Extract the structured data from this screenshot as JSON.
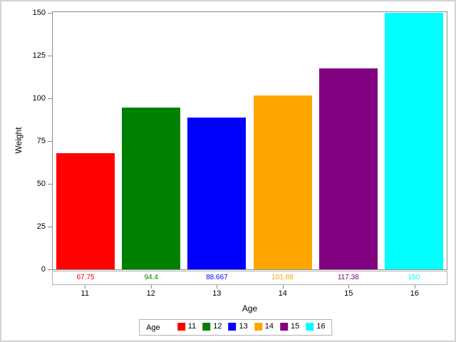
{
  "figure": {
    "background": "#ffffff",
    "accent_grays": {
      "outer_border": "#d2d2d2",
      "wall_border": "#8c8c8c",
      "box_border": "#b2b2b2"
    }
  },
  "chart_data": {
    "type": "bar",
    "title": "",
    "xlabel": "Age",
    "ylabel": "Weight",
    "categories": [
      "11",
      "12",
      "13",
      "14",
      "15",
      "16"
    ],
    "values": [
      67.75,
      94.4,
      88.667,
      101.88,
      117.38,
      150
    ],
    "value_labels": [
      "67.75",
      "94.4",
      "88.667",
      "101.88",
      "117.38",
      "150"
    ],
    "bar_colors": [
      "#ff0000",
      "#008000",
      "#0000ff",
      "#ffa500",
      "#800080",
      "#00ffff"
    ],
    "ylim": [
      0,
      150
    ],
    "yticks": [
      "0",
      "25",
      "50",
      "75",
      "100",
      "125",
      "150"
    ],
    "grid": false,
    "legend": {
      "position": "bottom",
      "title": "Age",
      "entries": [
        {
          "label": "11",
          "color": "#ff0000"
        },
        {
          "label": "12",
          "color": "#008000"
        },
        {
          "label": "13",
          "color": "#0000ff"
        },
        {
          "label": "14",
          "color": "#ffa500"
        },
        {
          "label": "15",
          "color": "#800080"
        },
        {
          "label": "16",
          "color": "#00ffff"
        }
      ]
    }
  }
}
